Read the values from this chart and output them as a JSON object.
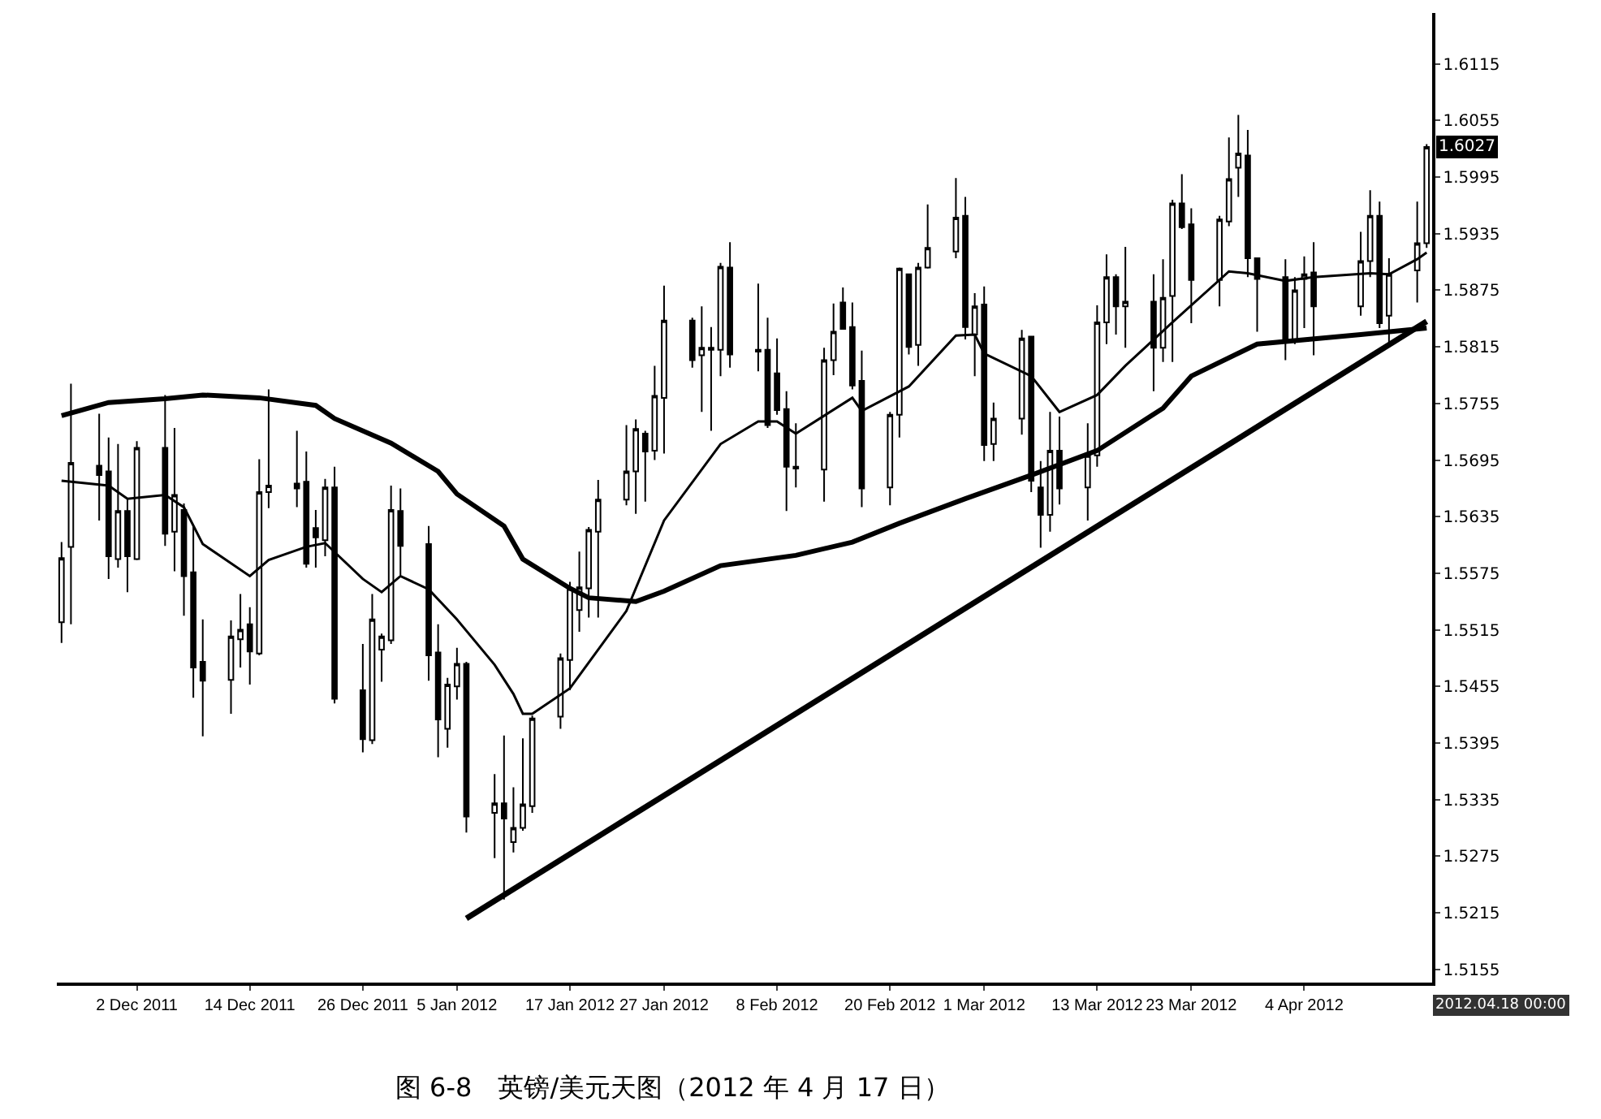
{
  "chart_data": {
    "type": "candlestick",
    "title": "图 6-8　英镑/美元天图（2012 年 4 月 17 日）",
    "x": [
      "2011-11-24",
      "2011-11-25",
      "2011-11-28",
      "2011-11-29",
      "2011-11-30",
      "2011-12-01",
      "2011-12-02",
      "2011-12-05",
      "2011-12-06",
      "2011-12-07",
      "2011-12-08",
      "2011-12-09",
      "2011-12-12",
      "2011-12-13",
      "2011-12-14",
      "2011-12-15",
      "2011-12-16",
      "2011-12-19",
      "2011-12-20",
      "2011-12-21",
      "2011-12-22",
      "2011-12-23",
      "2011-12-26",
      "2011-12-27",
      "2011-12-28",
      "2011-12-29",
      "2011-12-30",
      "2012-01-02",
      "2012-01-03",
      "2012-01-04",
      "2012-01-05",
      "2012-01-06",
      "2012-01-09",
      "2012-01-10",
      "2012-01-11",
      "2012-01-12",
      "2012-01-13",
      "2012-01-16",
      "2012-01-17",
      "2012-01-18",
      "2012-01-19",
      "2012-01-20",
      "2012-01-23",
      "2012-01-24",
      "2012-01-25",
      "2012-01-26",
      "2012-01-27",
      "2012-01-30",
      "2012-01-31",
      "2012-02-01",
      "2012-02-02",
      "2012-02-03",
      "2012-02-06",
      "2012-02-07",
      "2012-02-08",
      "2012-02-09",
      "2012-02-10",
      "2012-02-13",
      "2012-02-14",
      "2012-02-15",
      "2012-02-16",
      "2012-02-17",
      "2012-02-20",
      "2012-02-21",
      "2012-02-22",
      "2012-02-23",
      "2012-02-24",
      "2012-02-27",
      "2012-02-28",
      "2012-02-29",
      "2012-03-01",
      "2012-03-02",
      "2012-03-05",
      "2012-03-06",
      "2012-03-07",
      "2012-03-08",
      "2012-03-09",
      "2012-03-12",
      "2012-03-13",
      "2012-03-14",
      "2012-03-15",
      "2012-03-16",
      "2012-03-19",
      "2012-03-20",
      "2012-03-21",
      "2012-03-22",
      "2012-03-23",
      "2012-03-26",
      "2012-03-27",
      "2012-03-28",
      "2012-03-29",
      "2012-03-30",
      "2012-04-02",
      "2012-04-03",
      "2012-04-04",
      "2012-04-05",
      "2012-04-10",
      "2012-04-11",
      "2012-04-12",
      "2012-04-13",
      "2012-04-16",
      "2012-04-17"
    ],
    "ohlc": [
      [
        1.5523,
        1.5608,
        1.5501,
        1.5591
      ],
      [
        1.5603,
        1.5776,
        1.5521,
        1.5692
      ],
      [
        1.5689,
        1.5744,
        1.5631,
        1.5679
      ],
      [
        1.5683,
        1.5719,
        1.5569,
        1.5593
      ],
      [
        1.559,
        1.5712,
        1.5581,
        1.5641
      ],
      [
        1.5641,
        1.5655,
        1.5555,
        1.5593
      ],
      [
        1.559,
        1.5715,
        1.5589,
        1.5708
      ],
      [
        1.5708,
        1.5764,
        1.5604,
        1.5617
      ],
      [
        1.5619,
        1.5729,
        1.5577,
        1.5658
      ],
      [
        1.5642,
        1.5649,
        1.553,
        1.5572
      ],
      [
        1.5576,
        1.5625,
        1.5443,
        1.5475
      ],
      [
        1.5481,
        1.5526,
        1.5402,
        1.5461
      ],
      [
        1.5462,
        1.5525,
        1.5426,
        1.5508
      ],
      [
        1.5505,
        1.5553,
        1.5475,
        1.5515
      ],
      [
        1.5521,
        1.5539,
        1.5457,
        1.5492
      ],
      [
        1.549,
        1.5696,
        1.5488,
        1.5661
      ],
      [
        1.5661,
        1.577,
        1.5644,
        1.5668
      ],
      [
        1.567,
        1.5726,
        1.5645,
        1.5665
      ],
      [
        1.5672,
        1.5704,
        1.5581,
        1.5585
      ],
      [
        1.5623,
        1.5642,
        1.5581,
        1.5613
      ],
      [
        1.561,
        1.5675,
        1.5593,
        1.5666
      ],
      [
        1.5666,
        1.5688,
        1.5437,
        1.5442
      ],
      [
        1.5451,
        1.55,
        1.5385,
        1.5399
      ],
      [
        1.5398,
        1.5553,
        1.5394,
        1.5526
      ],
      [
        1.5494,
        1.5511,
        1.546,
        1.5508
      ],
      [
        1.5504,
        1.5668,
        1.55,
        1.5642
      ],
      [
        1.5641,
        1.5665,
        1.5573,
        1.5604
      ],
      [
        1.5606,
        1.5625,
        1.5461,
        1.5488
      ],
      [
        1.5491,
        1.5521,
        1.538,
        1.542
      ],
      [
        1.541,
        1.5464,
        1.539,
        1.5457
      ],
      [
        1.5455,
        1.5496,
        1.5441,
        1.5479
      ],
      [
        1.5479,
        1.5481,
        1.53,
        1.5317
      ],
      [
        1.5321,
        1.5362,
        1.5273,
        1.5331
      ],
      [
        1.5331,
        1.5403,
        1.5229,
        1.5315
      ],
      [
        1.529,
        1.5348,
        1.5279,
        1.5305
      ],
      [
        1.5305,
        1.54,
        1.5302,
        1.533
      ],
      [
        1.5328,
        1.5424,
        1.5321,
        1.5421
      ],
      [
        1.5423,
        1.549,
        1.541,
        1.5485
      ],
      [
        1.5483,
        1.5566,
        1.5451,
        1.5559
      ],
      [
        1.5536,
        1.5598,
        1.5513,
        1.556
      ],
      [
        1.5559,
        1.5624,
        1.5528,
        1.5621
      ],
      [
        1.5619,
        1.5674,
        1.5528,
        1.5653
      ],
      [
        1.5653,
        1.5732,
        1.5647,
        1.5683
      ],
      [
        1.5683,
        1.5738,
        1.5638,
        1.5728
      ],
      [
        1.5723,
        1.5726,
        1.5651,
        1.5704
      ],
      [
        1.5705,
        1.5795,
        1.5695,
        1.5763
      ],
      [
        1.5761,
        1.588,
        1.5702,
        1.5843
      ],
      [
        1.5843,
        1.5846,
        1.5793,
        1.5801
      ],
      [
        1.5806,
        1.5858,
        1.5746,
        1.5814
      ],
      [
        1.5814,
        1.5836,
        1.5726,
        1.5812
      ],
      [
        1.5812,
        1.5904,
        1.5784,
        1.59
      ],
      [
        1.5899,
        1.5926,
        1.5793,
        1.5807
      ],
      [
        1.5812,
        1.5882,
        1.5789,
        1.581
      ],
      [
        1.5812,
        1.5846,
        1.5729,
        1.5732
      ],
      [
        1.5787,
        1.5824,
        1.5743,
        1.5748
      ],
      [
        1.5749,
        1.5768,
        1.5641,
        1.5688
      ],
      [
        1.5688,
        1.5734,
        1.5666,
        1.5686
      ],
      [
        1.5685,
        1.5814,
        1.5651,
        1.5801
      ],
      [
        1.5801,
        1.5861,
        1.5785,
        1.5831
      ],
      [
        1.5862,
        1.5878,
        1.5834,
        1.5834
      ],
      [
        1.5836,
        1.5862,
        1.577,
        1.5774
      ],
      [
        1.5779,
        1.5811,
        1.5645,
        1.5665
      ],
      [
        1.5666,
        1.5746,
        1.5647,
        1.5743
      ],
      [
        1.5743,
        1.5899,
        1.5719,
        1.5898
      ],
      [
        1.5892,
        1.5892,
        1.5807,
        1.5815
      ],
      [
        1.5817,
        1.5904,
        1.5795,
        1.5899
      ],
      [
        1.5899,
        1.5966,
        1.5898,
        1.592
      ],
      [
        1.5916,
        1.5994,
        1.5909,
        1.5952
      ],
      [
        1.5954,
        1.5974,
        1.5823,
        1.5836
      ],
      [
        1.5828,
        1.5872,
        1.5784,
        1.5858
      ],
      [
        1.586,
        1.5879,
        1.5694,
        1.5711
      ],
      [
        1.5712,
        1.5756,
        1.5694,
        1.5739
      ],
      [
        1.5739,
        1.5833,
        1.5722,
        1.5824
      ],
      [
        1.5826,
        1.5826,
        1.5661,
        1.5673
      ],
      [
        1.5666,
        1.5694,
        1.5602,
        1.5637
      ],
      [
        1.5637,
        1.5746,
        1.5619,
        1.5705
      ],
      [
        1.5705,
        1.5741,
        1.5648,
        1.5665
      ],
      [
        1.5666,
        1.5734,
        1.5631,
        1.57
      ],
      [
        1.57,
        1.5859,
        1.5688,
        1.5841
      ],
      [
        1.5841,
        1.5913,
        1.5818,
        1.5889
      ],
      [
        1.5889,
        1.5892,
        1.5828,
        1.5858
      ],
      [
        1.5858,
        1.5921,
        1.5814,
        1.5863
      ],
      [
        1.5863,
        1.5892,
        1.5768,
        1.5814
      ],
      [
        1.5814,
        1.5908,
        1.5799,
        1.5867
      ],
      [
        1.5869,
        1.5971,
        1.5799,
        1.5967
      ],
      [
        1.5967,
        1.5998,
        1.594,
        1.5942
      ],
      [
        1.5945,
        1.5962,
        1.584,
        1.5886
      ],
      [
        1.5886,
        1.5954,
        1.5858,
        1.595
      ],
      [
        1.5948,
        1.6037,
        1.5943,
        1.5993
      ],
      [
        1.6005,
        1.6061,
        1.5974,
        1.602
      ],
      [
        1.6018,
        1.6045,
        1.5889,
        1.5909
      ],
      [
        1.5909,
        1.5909,
        1.5831,
        1.5887
      ],
      [
        1.5889,
        1.5908,
        1.5801,
        1.5823
      ],
      [
        1.5823,
        1.5889,
        1.5818,
        1.5875
      ],
      [
        1.5887,
        1.5911,
        1.5835,
        1.5892
      ],
      [
        1.5894,
        1.5926,
        1.5806,
        1.5858
      ],
      [
        1.5858,
        1.5937,
        1.5848,
        1.5906
      ],
      [
        1.5906,
        1.5981,
        1.5889,
        1.5954
      ],
      [
        1.5954,
        1.5969,
        1.5835,
        1.584
      ],
      [
        1.5848,
        1.5909,
        1.5818,
        1.5892
      ],
      [
        1.5896,
        1.5969,
        1.5862,
        1.5925
      ],
      [
        1.5925,
        1.603,
        1.592,
        1.6027
      ]
    ],
    "xlim": [
      "2011-11-23T12:00",
      "2012-04-17T14:00"
    ],
    "xticks": [
      {
        "value": "2011-12-02",
        "label": "2 Dec 2011"
      },
      {
        "value": "2011-12-14",
        "label": "14 Dec 2011"
      },
      {
        "value": "2011-12-26",
        "label": "26 Dec 2011"
      },
      {
        "value": "2012-01-05",
        "label": "5 Jan 2012"
      },
      {
        "value": "2012-01-17",
        "label": "17 Jan 2012"
      },
      {
        "value": "2012-01-27",
        "label": "27 Jan 2012"
      },
      {
        "value": "2012-02-08",
        "label": "8 Feb 2012"
      },
      {
        "value": "2012-02-20",
        "label": "20 Feb 2012"
      },
      {
        "value": "2012-03-01",
        "label": "1 Mar 2012"
      },
      {
        "value": "2012-03-13",
        "label": "13 Mar 2012"
      },
      {
        "value": "2012-03-23",
        "label": "23 Mar 2012"
      },
      {
        "value": "2012-04-04",
        "label": "4 Apr 2012"
      }
    ],
    "ylim": [
      1.5141,
      1.6169
    ],
    "yticks": [
      1.5155,
      1.5215,
      1.5275,
      1.5335,
      1.5395,
      1.5455,
      1.5515,
      1.5575,
      1.5635,
      1.5695,
      1.5755,
      1.5815,
      1.5875,
      1.5935,
      1.5995,
      1.6055,
      1.6115
    ],
    "grid": false,
    "series": [
      {
        "type": "line",
        "color": "#000000",
        "x": [
          "2011-11-24",
          "2011-11-29",
          "2011-12-01",
          "2011-12-05",
          "2011-12-07",
          "2011-12-09",
          "2011-12-14",
          "2011-12-16",
          "2011-12-20",
          "2011-12-22",
          "2011-12-26",
          "2011-12-28",
          "2011-12-30",
          "2012-01-02",
          "2012-01-05",
          "2012-01-09",
          "2012-01-11",
          "2012-01-12",
          "2012-01-13",
          "2012-01-17",
          "2012-01-23",
          "2012-01-27",
          "2012-02-02",
          "2012-02-06",
          "2012-02-08",
          "2012-02-10",
          "2012-02-16",
          "2012-02-17",
          "2012-02-22",
          "2012-02-27",
          "2012-02-29",
          "2012-03-01",
          "2012-03-06",
          "2012-03-09",
          "2012-03-13",
          "2012-03-16",
          "2012-03-21",
          "2012-03-27",
          "2012-03-29",
          "2012-04-02",
          "2012-04-05",
          "2012-04-11",
          "2012-04-13",
          "2012-04-16",
          "2012-04-17"
        ],
        "values": [
          1.5673,
          1.5668,
          1.5654,
          1.5658,
          1.5645,
          1.5606,
          1.5572,
          1.5589,
          1.5603,
          1.5607,
          1.5569,
          1.5555,
          1.5572,
          1.5558,
          1.5526,
          1.5478,
          1.5447,
          1.5426,
          1.5426,
          1.5453,
          1.5535,
          1.5631,
          1.5712,
          1.5736,
          1.5736,
          1.5723,
          1.5761,
          1.5747,
          1.5773,
          1.5827,
          1.5828,
          1.5808,
          1.5784,
          1.5746,
          1.5764,
          1.5795,
          1.5841,
          1.5895,
          1.5893,
          1.5885,
          1.5889,
          1.5893,
          1.5892,
          1.5908,
          1.5915
        ]
      },
      {
        "type": "line",
        "color": "#000000",
        "x": [
          "2011-11-24",
          "2011-11-29",
          "2011-12-05",
          "2011-12-09",
          "2011-12-15",
          "2011-12-21",
          "2011-12-23",
          "2011-12-29",
          "2012-01-03",
          "2012-01-05",
          "2012-01-10",
          "2012-01-12",
          "2012-01-17",
          "2012-01-19",
          "2012-01-24",
          "2012-01-27",
          "2012-02-02",
          "2012-02-10",
          "2012-02-16",
          "2012-02-21",
          "2012-02-28",
          "2012-03-06",
          "2012-03-13",
          "2012-03-20",
          "2012-03-23",
          "2012-03-30",
          "2012-04-10",
          "2012-04-17"
        ],
        "values": [
          1.5742,
          1.5756,
          1.576,
          1.5764,
          1.5761,
          1.5753,
          1.5739,
          1.5713,
          1.5683,
          1.5659,
          1.5625,
          1.559,
          1.5559,
          1.5549,
          1.5545,
          1.5556,
          1.5583,
          1.5594,
          1.5608,
          1.5628,
          1.5654,
          1.5679,
          1.5705,
          1.575,
          1.5784,
          1.5818,
          1.5828,
          1.5835
        ]
      },
      {
        "type": "line",
        "color": "#000000",
        "x": [
          "2012-01-06",
          "2012-04-17"
        ],
        "values": [
          1.5209,
          1.5842
        ]
      }
    ],
    "annotations": [
      {
        "text": "1.6027",
        "y": 1.6027
      },
      "2012.04.18 00:00"
    ]
  }
}
